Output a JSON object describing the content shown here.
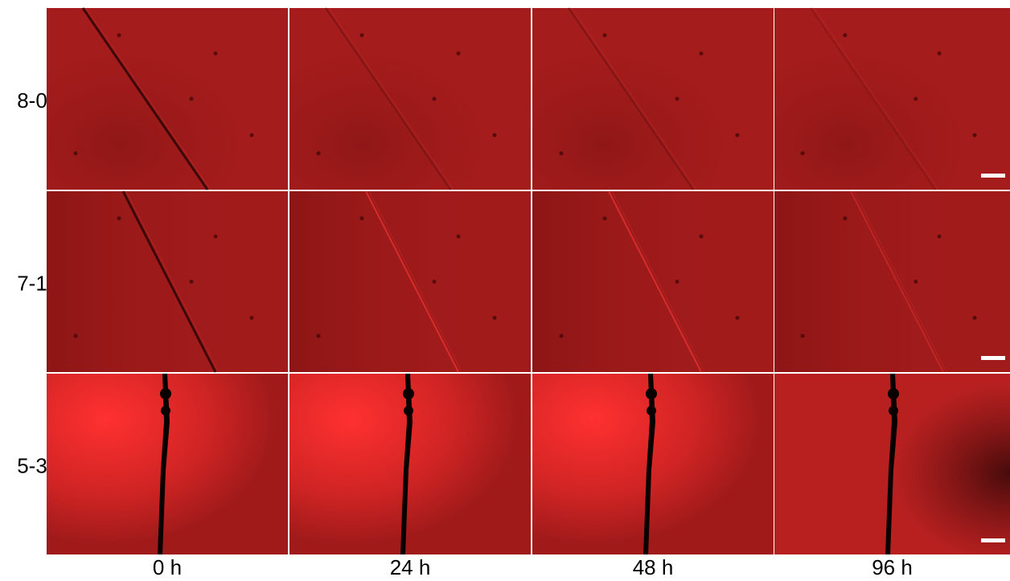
{
  "row_labels": [
    "8-0",
    "7-1",
    "5-3"
  ],
  "column_labels": [
    "0 h",
    "24 h",
    "48 h",
    "96 h"
  ]
}
